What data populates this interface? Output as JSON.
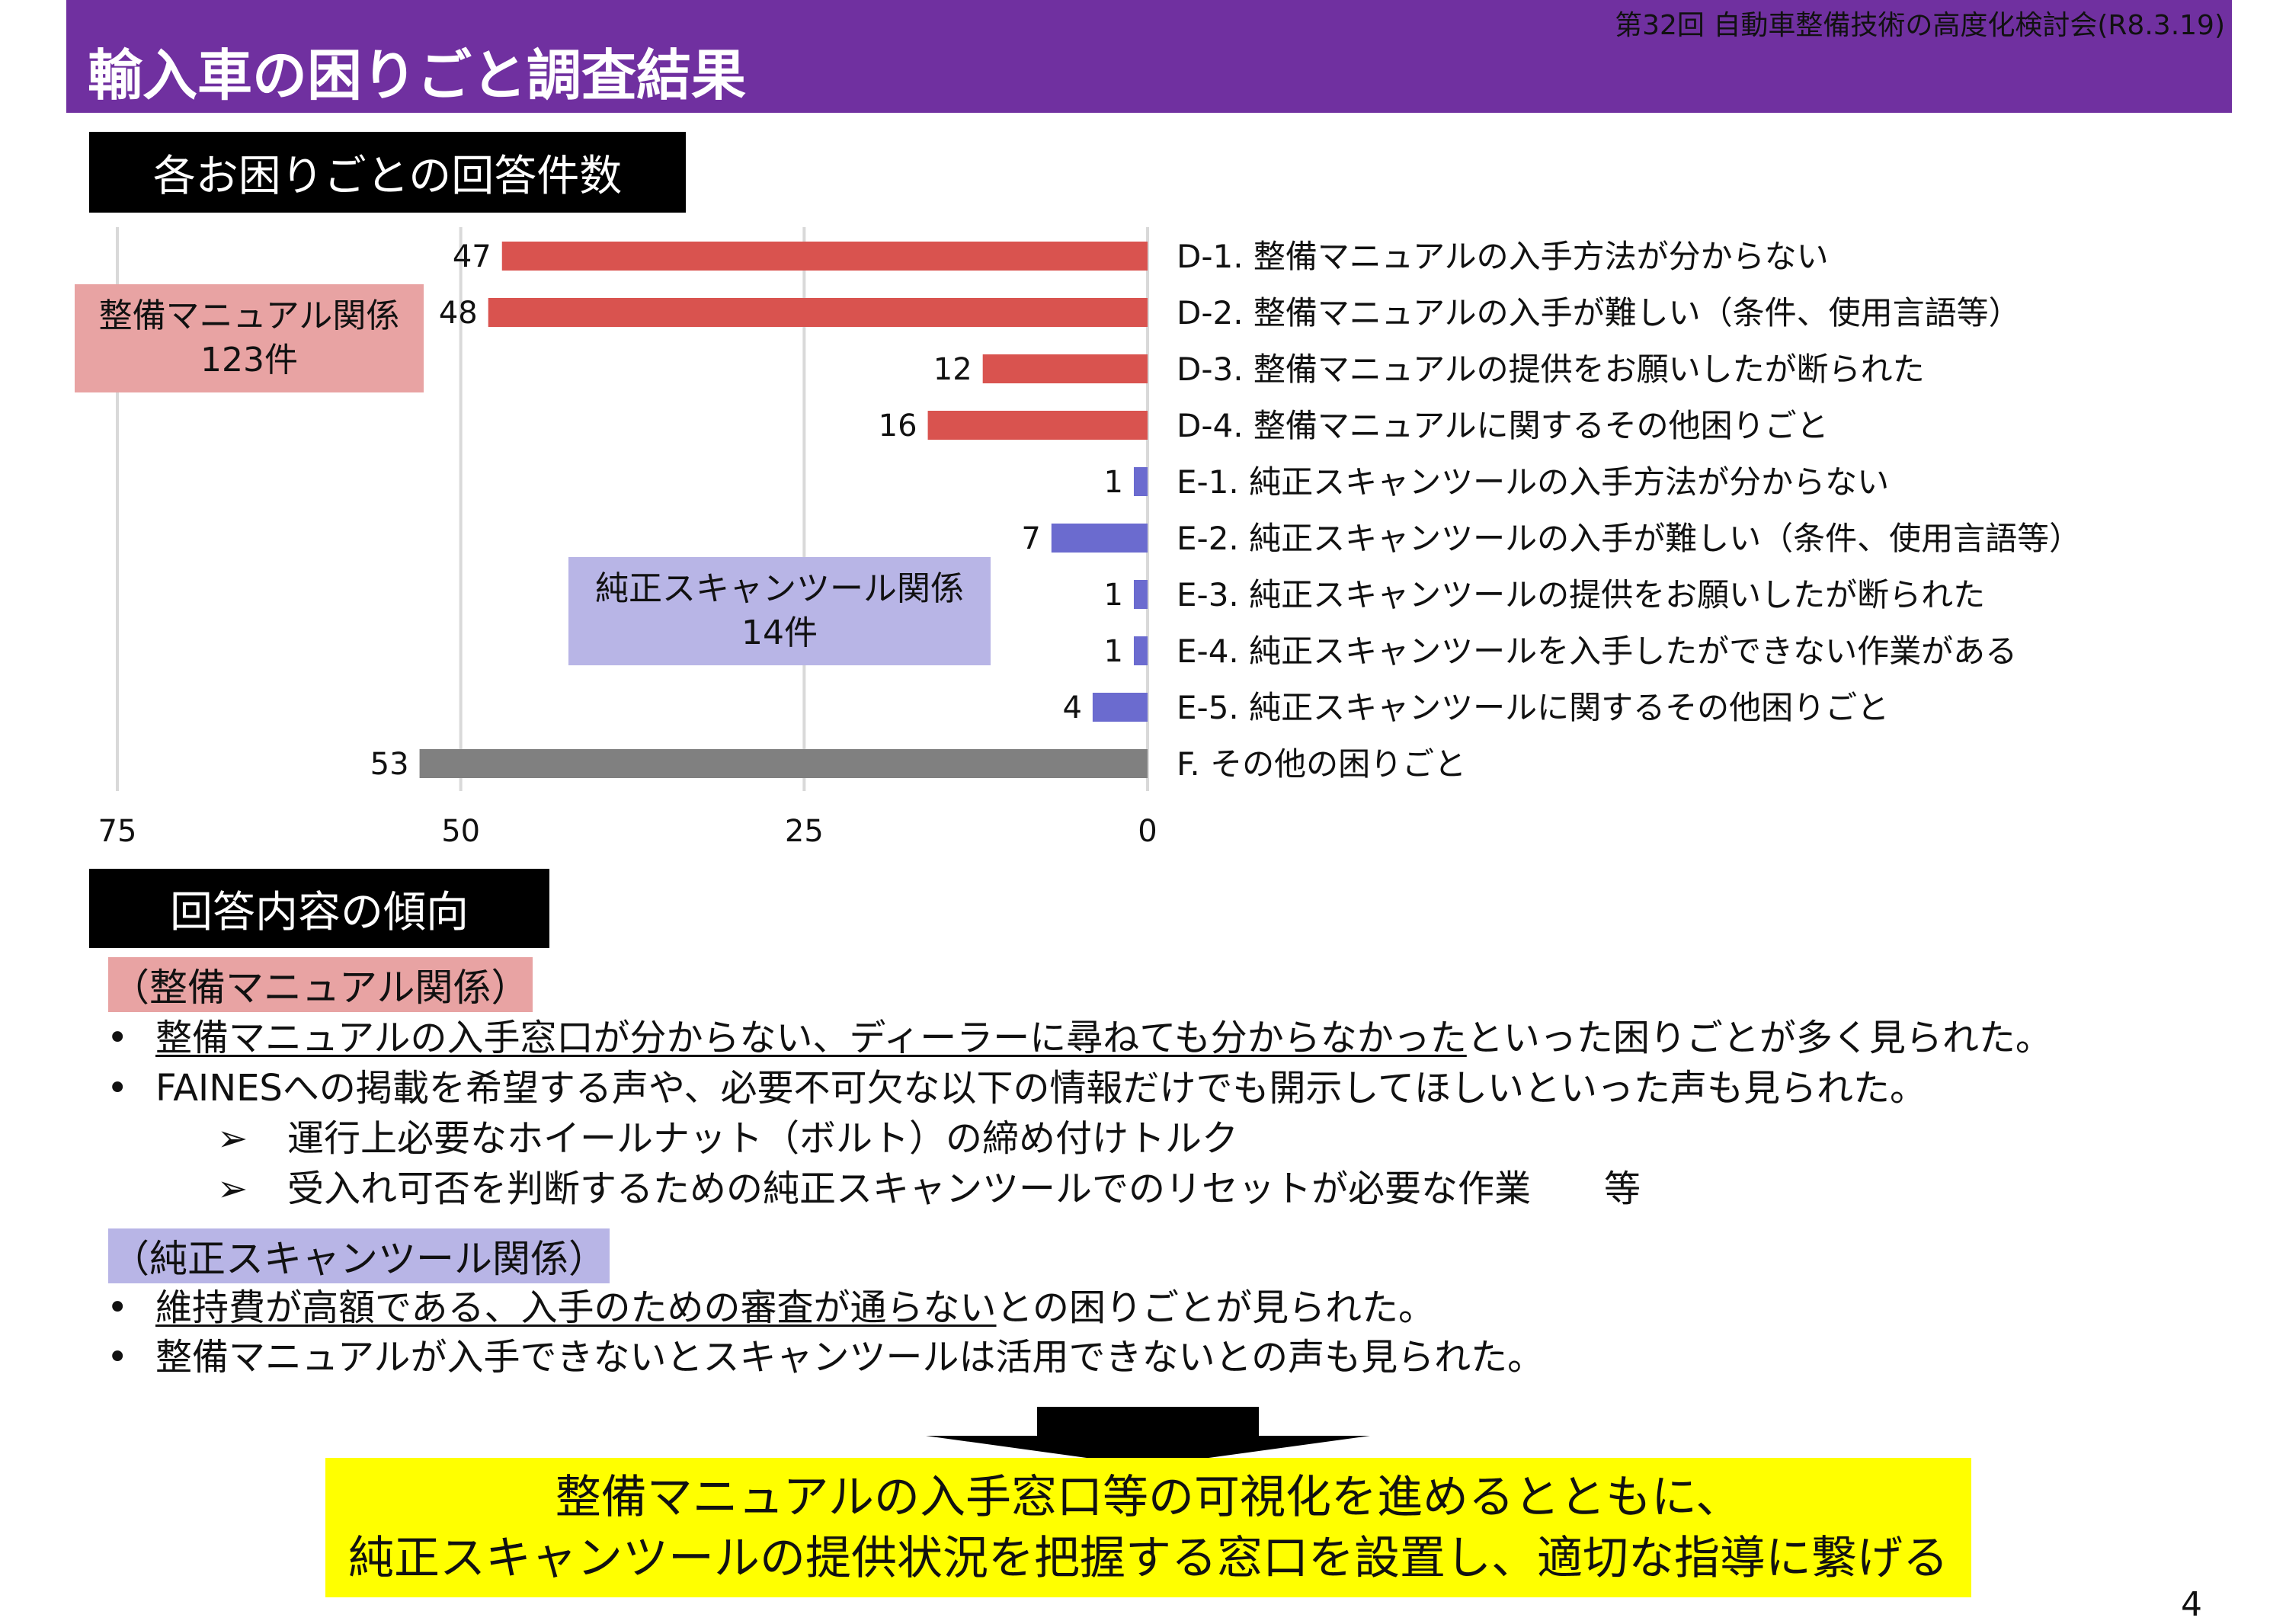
{
  "header": {
    "title": "輸入車の困りごと調査結果",
    "meeting": "第32回 自動車整備技術の高度化検討会(R8.3.19)",
    "color": "#7030A0"
  },
  "section1": {
    "label": "各お困りごとの回答件数"
  },
  "chart_data": {
    "type": "bar",
    "orientation": "horizontal-reversed",
    "categories": [
      "D-1. 整備マニュアルの入手方法が分からない",
      "D-2. 整備マニュアルの入手が難しい（条件、使用言語等）",
      "D-3. 整備マニュアルの提供をお願いしたが断られた",
      "D-4. 整備マニュアルに関するその他困りごと",
      "E-1. 純正スキャンツールの入手方法が分からない",
      "E-2. 純正スキャンツールの入手が難しい（条件、使用言語等）",
      "E-3. 純正スキャンツールの提供をお願いしたが断られた",
      "E-4. 純正スキャンツールを入手したができない作業がある",
      "E-5. 純正スキャンツールに関するその他困りごと",
      "F. その他の困りごと"
    ],
    "values": [
      47,
      48,
      12,
      16,
      1,
      7,
      1,
      1,
      4,
      53
    ],
    "colors": [
      "#D9534F",
      "#D9534F",
      "#D9534F",
      "#D9534F",
      "#6B6BCF",
      "#6B6BCF",
      "#6B6BCF",
      "#6B6BCF",
      "#6B6BCF",
      "#808080"
    ],
    "xlim": [
      0,
      75
    ],
    "ticks": [
      "75",
      "50",
      "25",
      "0"
    ],
    "tick_values": [
      75,
      50,
      25,
      0
    ],
    "grid": true,
    "groups": [
      {
        "label": "整備マニュアル関係",
        "count": "123件",
        "color": "#E8A3A3"
      },
      {
        "label": "純正スキャンツール関係",
        "count": "14件",
        "color": "#B8B5E6"
      }
    ]
  },
  "section2": {
    "label": "回答内容の傾向"
  },
  "manual": {
    "heading": "（整備マニュアル関係）",
    "b1_u": "整備マニュアルの入手窓口が分からない、ディーラーに尋ねても分からなかった",
    "b1_rest": "といった困りごとが多く見られた。",
    "b2": "FAINESへの掲載を希望する声や、必要不可欠な以下の情報だけでも開示してほしいといった声も見られた。",
    "sub1": "運行上必要なホイールナット（ボルト）の締め付けトルク",
    "sub2": "受入れ可否を判断するための純正スキャンツールでのリセットが必要な作業　　等"
  },
  "scan": {
    "heading": "（純正スキャンツール関係）",
    "b1_u": "維持費が高額である、入手のための審査が通らない",
    "b1_rest": "との困りごとが見られた。",
    "b2": "整備マニュアルが入手できないとスキャンツールは活用できないとの声も見られた。"
  },
  "bullet": "•",
  "arrow_bullet": "➢",
  "conclusion": {
    "line1": "整備マニュアルの入手窓口等の可視化を進めるとともに、",
    "line2": "純正スキャンツールの提供状況を把握する窓口を設置し、適切な指導に繋げる",
    "color": "#FFFF00"
  },
  "page_number": "4"
}
